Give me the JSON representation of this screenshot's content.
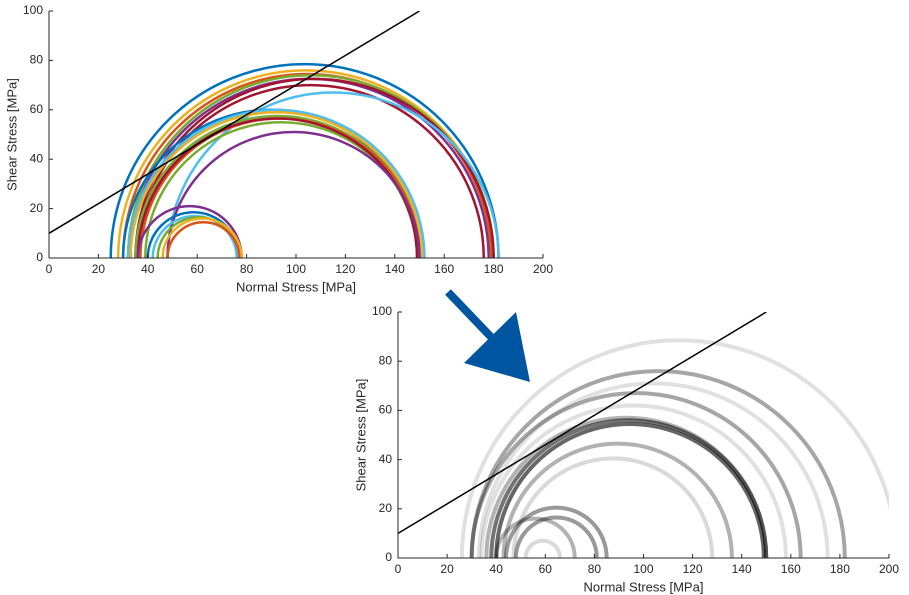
{
  "chart_data": [
    {
      "type": "mohr",
      "xlabel": "Normal Stress [MPa]",
      "ylabel": "Shear Stress [MPa]",
      "xlim": [
        0,
        200
      ],
      "ylim": [
        0,
        100
      ],
      "xticks": [
        0,
        20,
        40,
        60,
        80,
        100,
        120,
        140,
        160,
        180,
        200
      ],
      "yticks": [
        0,
        20,
        40,
        60,
        80,
        100
      ],
      "stroke_width": 2.5,
      "circles": [
        {
          "color": "#0072bd",
          "sigma3": 25,
          "sigma1": 182
        },
        {
          "color": "#edb120",
          "sigma3": 28,
          "sigma1": 180
        },
        {
          "color": "#d95319",
          "sigma3": 30,
          "sigma1": 179
        },
        {
          "color": "#77ac30",
          "sigma3": 32,
          "sigma1": 180
        },
        {
          "color": "#7e2f8e",
          "sigma3": 33,
          "sigma1": 178
        },
        {
          "color": "#a2142f",
          "sigma3": 35,
          "sigma1": 180
        },
        {
          "color": "#a2142f",
          "sigma3": 36,
          "sigma1": 176
        },
        {
          "color": "#4dbeee",
          "sigma3": 48,
          "sigma1": 182
        },
        {
          "color": "#0072bd",
          "sigma3": 30,
          "sigma1": 150
        },
        {
          "color": "#4dbeee",
          "sigma3": 32,
          "sigma1": 152
        },
        {
          "color": "#edb120",
          "sigma3": 33,
          "sigma1": 151
        },
        {
          "color": "#77ac30",
          "sigma3": 35,
          "sigma1": 150
        },
        {
          "color": "#d95319",
          "sigma3": 37,
          "sigma1": 150
        },
        {
          "color": "#77ac30",
          "sigma3": 39,
          "sigma1": 149
        },
        {
          "color": "#a2142f",
          "sigma3": 36,
          "sigma1": 149
        },
        {
          "color": "#7e2f8e",
          "sigma3": 48,
          "sigma1": 150
        },
        {
          "color": "#7e2f8e",
          "sigma3": 36,
          "sigma1": 78
        },
        {
          "color": "#0072bd",
          "sigma3": 40,
          "sigma1": 77
        },
        {
          "color": "#4dbeee",
          "sigma3": 42,
          "sigma1": 76
        },
        {
          "color": "#77ac30",
          "sigma3": 44,
          "sigma1": 77
        },
        {
          "color": "#edb120",
          "sigma3": 46,
          "sigma1": 78
        },
        {
          "color": "#d95319",
          "sigma3": 48,
          "sigma1": 77
        }
      ],
      "line": {
        "color": "#000000",
        "x": [
          0,
          150
        ],
        "y": [
          10,
          100
        ]
      }
    },
    {
      "type": "mohr",
      "xlabel": "Normal Stress [MPa]",
      "ylabel": "Shear Stress [MPa]",
      "xlim": [
        0,
        200
      ],
      "ylim": [
        0,
        100
      ],
      "xticks": [
        0,
        20,
        40,
        60,
        80,
        100,
        120,
        140,
        160,
        180,
        200
      ],
      "yticks": [
        0,
        20,
        40,
        60,
        80,
        100
      ],
      "stroke_width": 4,
      "circles": [
        {
          "color": "rgba(0,0,0,0.12)",
          "sigma3": 26,
          "sigma1": 203
        },
        {
          "color": "rgba(0,0,0,0.35)",
          "sigma3": 30,
          "sigma1": 182
        },
        {
          "color": "rgba(0,0,0,0.12)",
          "sigma3": 33,
          "sigma1": 175
        },
        {
          "color": "rgba(0,0,0,0.35)",
          "sigma3": 30,
          "sigma1": 164
        },
        {
          "color": "rgba(0,0,0,0.12)",
          "sigma3": 34,
          "sigma1": 158
        },
        {
          "color": "rgba(0,0,0,0.3)",
          "sigma3": 36,
          "sigma1": 150
        },
        {
          "color": "rgba(0,0,0,0.55)",
          "sigma3": 38,
          "sigma1": 150
        },
        {
          "color": "rgba(0,0,0,0.6)",
          "sigma3": 40,
          "sigma1": 149
        },
        {
          "color": "rgba(0,0,0,0.3)",
          "sigma3": 43,
          "sigma1": 136
        },
        {
          "color": "rgba(0,0,0,0.15)",
          "sigma3": 47,
          "sigma1": 128
        },
        {
          "color": "rgba(0,0,0,0.4)",
          "sigma3": 44,
          "sigma1": 85
        },
        {
          "color": "rgba(0,0,0,0.4)",
          "sigma3": 48,
          "sigma1": 81
        },
        {
          "color": "rgba(0,0,0,0.3)",
          "sigma3": 40,
          "sigma1": 72
        },
        {
          "color": "rgba(0,0,0,0.15)",
          "sigma3": 52,
          "sigma1": 66
        }
      ],
      "line": {
        "color": "#000000",
        "x": [
          0,
          150
        ],
        "y": [
          10,
          100
        ]
      }
    }
  ]
}
